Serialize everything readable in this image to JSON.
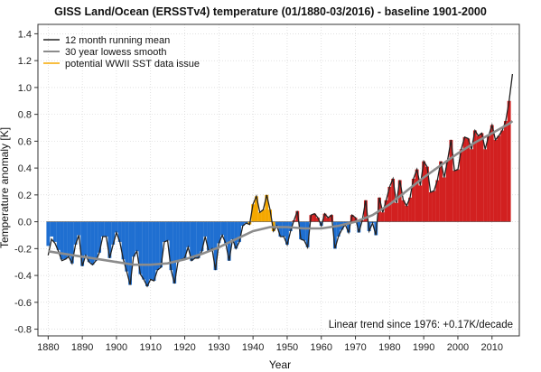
{
  "chart_data": {
    "type": "bar",
    "title": "GISS Land/Ocean (ERSSTv4) temperature (01/1880-03/2016) - baseline 1901-2000",
    "xlabel": "Year",
    "ylabel": "Temperature anomaly [K]",
    "xlim": [
      1877,
      2018
    ],
    "ylim": [
      -0.85,
      1.47
    ],
    "x_ticks": [
      1880,
      1890,
      1900,
      1910,
      1920,
      1930,
      1940,
      1950,
      1960,
      1970,
      1980,
      1990,
      2000,
      2010
    ],
    "y_ticks": [
      -0.8,
      -0.6,
      -0.4,
      -0.2,
      0.0,
      0.2,
      0.4,
      0.6,
      0.8,
      1.0,
      1.2,
      1.4
    ],
    "y_tick_labels": [
      "-0.8",
      "-0.6",
      "-0.4",
      "-0.2",
      "0.0",
      "0.2",
      "0.4",
      "0.6",
      "0.8",
      "1.0",
      "1.2",
      "1.4"
    ],
    "grid": true,
    "legend_position": "top-left",
    "legend": [
      {
        "label": "12 month running mean",
        "color": "#222222"
      },
      {
        "label": "30 year lowess smooth",
        "color": "#8c8c8c"
      },
      {
        "label": "potential WWII SST data issue",
        "color": "#f5a800"
      }
    ],
    "annotation": "Linear trend since 1976: +0.17K/decade",
    "colors": {
      "negative": "#1f6fd1",
      "positive": "#d22020",
      "wwii": "#f5a800",
      "running_mean": "#222222",
      "lowess": "#8c8c8c"
    },
    "wwii_period": [
      1939,
      1946
    ],
    "annual_anomaly": {
      "x": [
        1880,
        1881,
        1882,
        1883,
        1884,
        1885,
        1886,
        1887,
        1888,
        1889,
        1890,
        1891,
        1892,
        1893,
        1894,
        1895,
        1896,
        1897,
        1898,
        1899,
        1900,
        1901,
        1902,
        1903,
        1904,
        1905,
        1906,
        1907,
        1908,
        1909,
        1910,
        1911,
        1912,
        1913,
        1914,
        1915,
        1916,
        1917,
        1918,
        1919,
        1920,
        1921,
        1922,
        1923,
        1924,
        1925,
        1926,
        1927,
        1928,
        1929,
        1930,
        1931,
        1932,
        1933,
        1934,
        1935,
        1936,
        1937,
        1938,
        1939,
        1940,
        1941,
        1942,
        1943,
        1944,
        1945,
        1946,
        1947,
        1948,
        1949,
        1950,
        1951,
        1952,
        1953,
        1954,
        1955,
        1956,
        1957,
        1958,
        1959,
        1960,
        1961,
        1962,
        1963,
        1964,
        1965,
        1966,
        1967,
        1968,
        1969,
        1970,
        1971,
        1972,
        1973,
        1974,
        1975,
        1976,
        1977,
        1978,
        1979,
        1980,
        1981,
        1982,
        1983,
        1984,
        1985,
        1986,
        1987,
        1988,
        1989,
        1990,
        1991,
        1992,
        1993,
        1994,
        1995,
        1996,
        1997,
        1998,
        1999,
        2000,
        2001,
        2002,
        2003,
        2004,
        2005,
        2006,
        2007,
        2008,
        2009,
        2010,
        2011,
        2012,
        2013,
        2014,
        2015
      ],
      "y": [
        -0.18,
        -0.11,
        -0.15,
        -0.21,
        -0.28,
        -0.28,
        -0.26,
        -0.31,
        -0.17,
        -0.1,
        -0.33,
        -0.25,
        -0.3,
        -0.32,
        -0.29,
        -0.23,
        -0.11,
        -0.11,
        -0.27,
        -0.17,
        -0.08,
        -0.15,
        -0.28,
        -0.37,
        -0.47,
        -0.26,
        -0.22,
        -0.39,
        -0.43,
        -0.48,
        -0.43,
        -0.44,
        -0.36,
        -0.34,
        -0.15,
        -0.14,
        -0.36,
        -0.46,
        -0.3,
        -0.28,
        -0.27,
        -0.19,
        -0.29,
        -0.27,
        -0.27,
        -0.22,
        -0.11,
        -0.22,
        -0.2,
        -0.36,
        -0.16,
        -0.1,
        -0.16,
        -0.29,
        -0.13,
        -0.2,
        -0.15,
        -0.03,
        -0.01,
        -0.02,
        0.13,
        0.19,
        0.07,
        0.09,
        0.2,
        0.09,
        -0.07,
        -0.03,
        -0.11,
        -0.11,
        -0.17,
        -0.07,
        0.01,
        0.08,
        -0.13,
        -0.14,
        -0.19,
        0.05,
        0.06,
        0.03,
        -0.03,
        0.06,
        0.03,
        0.05,
        -0.2,
        -0.11,
        -0.06,
        -0.02,
        -0.08,
        0.05,
        0.03,
        -0.08,
        0.01,
        0.16,
        -0.07,
        -0.01,
        -0.1,
        0.18,
        0.07,
        0.16,
        0.26,
        0.32,
        0.14,
        0.31,
        0.16,
        0.12,
        0.18,
        0.32,
        0.39,
        0.27,
        0.45,
        0.41,
        0.22,
        0.23,
        0.31,
        0.45,
        0.33,
        0.46,
        0.61,
        0.38,
        0.39,
        0.54,
        0.63,
        0.62,
        0.54,
        0.68,
        0.64,
        0.66,
        0.54,
        0.64,
        0.72,
        0.61,
        0.64,
        0.68,
        0.75,
        0.9
      ]
    },
    "running_mean_12mo": {
      "x": [
        1880,
        1881,
        1882,
        1883,
        1884,
        1885,
        1886,
        1887,
        1888,
        1889,
        1890,
        1891,
        1892,
        1893,
        1894,
        1895,
        1896,
        1897,
        1898,
        1899,
        1900,
        1901,
        1902,
        1903,
        1904,
        1905,
        1906,
        1907,
        1908,
        1909,
        1910,
        1911,
        1912,
        1913,
        1914,
        1915,
        1916,
        1917,
        1918,
        1919,
        1920,
        1921,
        1922,
        1923,
        1924,
        1925,
        1926,
        1927,
        1928,
        1929,
        1930,
        1931,
        1932,
        1933,
        1934,
        1935,
        1936,
        1937,
        1938,
        1939,
        1940,
        1941,
        1942,
        1943,
        1944,
        1945,
        1946,
        1947,
        1948,
        1949,
        1950,
        1951,
        1952,
        1953,
        1954,
        1955,
        1956,
        1957,
        1958,
        1959,
        1960,
        1961,
        1962,
        1963,
        1964,
        1965,
        1966,
        1967,
        1968,
        1969,
        1970,
        1971,
        1972,
        1973,
        1974,
        1975,
        1976,
        1977,
        1978,
        1979,
        1980,
        1981,
        1982,
        1983,
        1984,
        1985,
        1986,
        1987,
        1988,
        1989,
        1990,
        1991,
        1992,
        1993,
        1994,
        1995,
        1996,
        1997,
        1998,
        1999,
        2000,
        2001,
        2002,
        2003,
        2004,
        2005,
        2006,
        2007,
        2008,
        2009,
        2010,
        2011,
        2012,
        2013,
        2014,
        2015,
        2016
      ],
      "y": [
        -0.25,
        -0.13,
        -0.16,
        -0.22,
        -0.29,
        -0.28,
        -0.26,
        -0.31,
        -0.17,
        -0.1,
        -0.33,
        -0.25,
        -0.3,
        -0.32,
        -0.29,
        -0.23,
        -0.11,
        -0.11,
        -0.27,
        -0.17,
        -0.08,
        -0.15,
        -0.28,
        -0.37,
        -0.47,
        -0.26,
        -0.22,
        -0.39,
        -0.43,
        -0.48,
        -0.43,
        -0.44,
        -0.36,
        -0.34,
        -0.15,
        -0.14,
        -0.36,
        -0.46,
        -0.3,
        -0.28,
        -0.27,
        -0.19,
        -0.29,
        -0.27,
        -0.27,
        -0.22,
        -0.11,
        -0.22,
        -0.2,
        -0.36,
        -0.16,
        -0.1,
        -0.16,
        -0.29,
        -0.13,
        -0.2,
        -0.15,
        -0.03,
        -0.01,
        -0.02,
        0.13,
        0.19,
        0.07,
        0.09,
        0.2,
        0.09,
        -0.07,
        -0.03,
        -0.11,
        -0.11,
        -0.17,
        -0.07,
        0.01,
        0.08,
        -0.13,
        -0.14,
        -0.19,
        0.05,
        0.06,
        0.03,
        -0.03,
        0.06,
        0.03,
        0.05,
        -0.2,
        -0.11,
        -0.06,
        -0.02,
        -0.08,
        0.05,
        0.03,
        -0.08,
        0.01,
        0.16,
        -0.07,
        -0.01,
        -0.1,
        0.18,
        0.07,
        0.16,
        0.26,
        0.32,
        0.14,
        0.31,
        0.16,
        0.12,
        0.18,
        0.32,
        0.39,
        0.27,
        0.45,
        0.41,
        0.22,
        0.23,
        0.31,
        0.45,
        0.33,
        0.46,
        0.61,
        0.38,
        0.39,
        0.54,
        0.63,
        0.62,
        0.54,
        0.68,
        0.64,
        0.66,
        0.54,
        0.64,
        0.72,
        0.61,
        0.64,
        0.68,
        0.75,
        0.9,
        1.1
      ]
    },
    "lowess_30yr": {
      "x": [
        1880,
        1885,
        1890,
        1895,
        1900,
        1905,
        1910,
        1915,
        1920,
        1925,
        1930,
        1935,
        1940,
        1945,
        1950,
        1955,
        1960,
        1965,
        1970,
        1975,
        1980,
        1985,
        1990,
        1995,
        2000,
        2005,
        2010,
        2015,
        2016
      ],
      "y": [
        -0.22,
        -0.24,
        -0.26,
        -0.28,
        -0.3,
        -0.32,
        -0.32,
        -0.31,
        -0.28,
        -0.24,
        -0.19,
        -0.13,
        -0.07,
        -0.04,
        -0.04,
        -0.05,
        -0.05,
        -0.03,
        0.0,
        0.05,
        0.13,
        0.23,
        0.33,
        0.42,
        0.51,
        0.59,
        0.66,
        0.73,
        0.75
      ]
    }
  }
}
